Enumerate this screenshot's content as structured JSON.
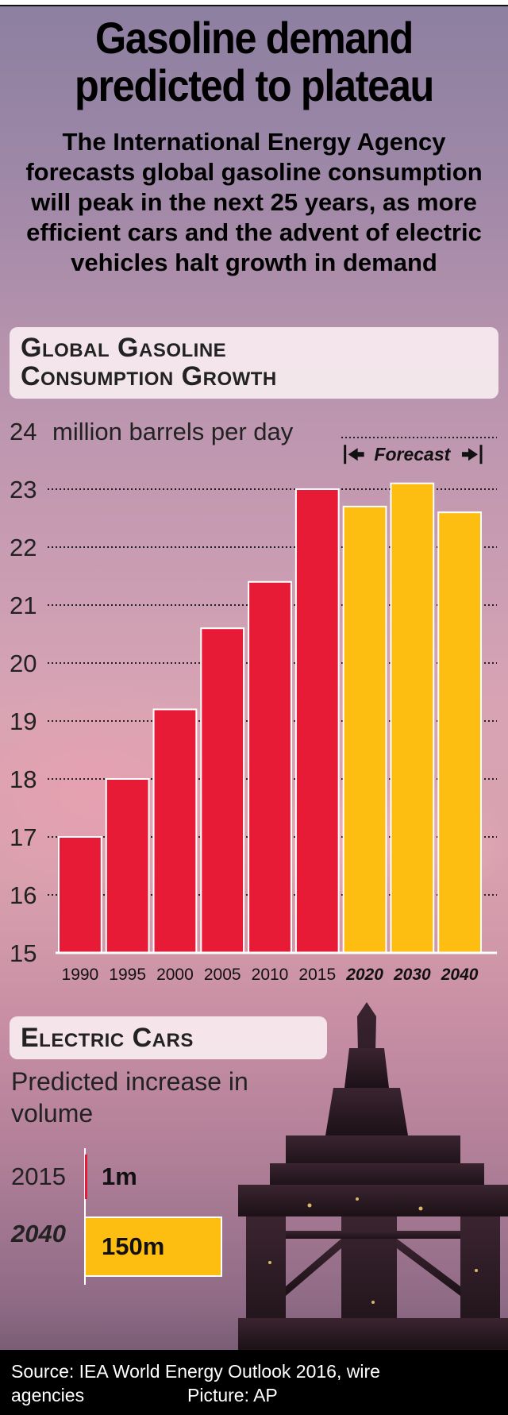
{
  "headline": "Gasoline demand predicted to plateau",
  "subtitle": "The International Energy Agency forecasts global gasoline consumption will peak in the next 25 years, as more efficient cars and the advent of electric vehicles halt growth in demand",
  "gasoline_panel": {
    "title_line1": "Global Gasoline",
    "title_line2": "Consumption Growth"
  },
  "electric_panel": {
    "title": "Electric Cars",
    "caption": "Predicted increase in volume",
    "rows": [
      {
        "year": "2015",
        "value_label": "1m",
        "value": 1,
        "forecast": false
      },
      {
        "year": "2040",
        "value_label": "150m",
        "value": 150,
        "forecast": true
      }
    ]
  },
  "footer": {
    "source": "Source: IEA World Energy Outlook 2016, wire agencies",
    "picture": "Picture: AP"
  },
  "colors": {
    "actual": "#e81b37",
    "forecast": "#fdbe11"
  },
  "chart_data": {
    "type": "bar",
    "title": "Global Gasoline Consumption Growth",
    "ylabel": "million barrels per day",
    "ylim": [
      15,
      24
    ],
    "yticks": [
      15,
      16,
      17,
      18,
      19,
      20,
      21,
      22,
      23,
      24
    ],
    "categories": [
      "1990",
      "1995",
      "2000",
      "2005",
      "2010",
      "2015",
      "2020",
      "2030",
      "2040"
    ],
    "values": [
      17.0,
      18.0,
      19.2,
      20.6,
      21.4,
      23.0,
      22.7,
      23.1,
      22.6
    ],
    "forecast_from_index": 6,
    "forecast_label": "Forecast",
    "grid": "dotted horizontal"
  }
}
